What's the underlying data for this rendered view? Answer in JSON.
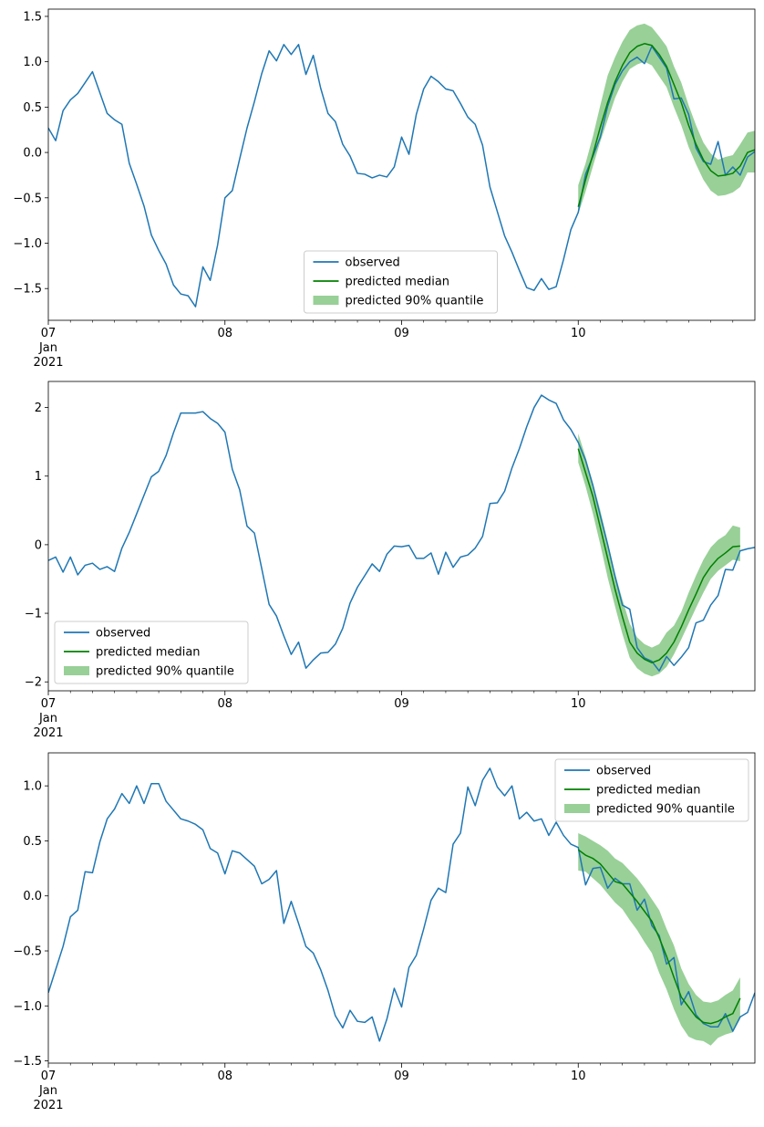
{
  "chart_data": [
    {
      "type": "line",
      "title": "",
      "xlabel": "",
      "ylabel": "",
      "x_start": "2021-01-07T00:00",
      "x_end": "2021-01-11T00:00",
      "step_hours": 1,
      "forecast_start": "2021-01-10T00:00",
      "xticks": [
        {
          "at": "2021-01-07",
          "label": "07",
          "sublabels": [
            "Jan",
            "2021"
          ]
        },
        {
          "at": "2021-01-08",
          "label": "08",
          "sublabels": []
        },
        {
          "at": "2021-01-09",
          "label": "09",
          "sublabels": []
        },
        {
          "at": "2021-01-10",
          "label": "10",
          "sublabels": []
        }
      ],
      "ylim": [
        -1.85,
        1.58
      ],
      "yticks": [
        {
          "value": -1.5,
          "label": "−1.5"
        },
        {
          "value": -1.0,
          "label": "−1.0"
        },
        {
          "value": -0.5,
          "label": "−0.5"
        },
        {
          "value": 0.0,
          "label": "0.0"
        },
        {
          "value": 0.5,
          "label": "0.5"
        },
        {
          "value": 1.0,
          "label": "1.0"
        },
        {
          "value": 1.5,
          "label": "1.5"
        }
      ],
      "legend": {
        "position": "lower center",
        "entries": [
          "observed",
          "predicted median",
          "predicted 90% quantile"
        ]
      },
      "series": [
        {
          "name": "observed",
          "color": "#1f77b4",
          "values": [
            0.27,
            0.13,
            0.46,
            0.58,
            0.65,
            0.77,
            0.89,
            0.66,
            0.43,
            0.36,
            0.31,
            -0.12,
            -0.35,
            -0.59,
            -0.91,
            -1.08,
            -1.23,
            -1.46,
            -1.56,
            -1.58,
            -1.7,
            -1.26,
            -1.41,
            -1.02,
            -0.5,
            -0.42,
            -0.07,
            0.27,
            0.56,
            0.87,
            1.12,
            1.01,
            1.19,
            1.08,
            1.19,
            0.86,
            1.07,
            0.71,
            0.43,
            0.34,
            0.09,
            -0.04,
            -0.23,
            -0.24,
            -0.28,
            -0.25,
            -0.27,
            -0.16,
            0.17,
            -0.02,
            0.42,
            0.7,
            0.84,
            0.78,
            0.7,
            0.68,
            0.54,
            0.39,
            0.31,
            0.08,
            -0.38,
            -0.65,
            -0.92,
            -1.1,
            -1.3,
            -1.49,
            -1.52,
            -1.39,
            -1.51,
            -1.48,
            -1.18,
            -0.85,
            -0.66,
            -0.24,
            -0.04,
            0.17,
            0.51,
            0.75,
            0.9,
            1.0,
            1.05,
            0.98,
            1.17,
            1.05,
            0.93,
            0.59,
            0.6,
            0.42,
            0.05,
            -0.1,
            -0.13,
            0.12,
            -0.25,
            -0.16,
            -0.25,
            -0.05,
            0.01
          ]
        },
        {
          "name": "predicted median",
          "color": "#008000",
          "x_offset": 72,
          "values": [
            -0.6,
            -0.3,
            -0.02,
            0.28,
            0.55,
            0.78,
            0.96,
            1.1,
            1.17,
            1.2,
            1.18,
            1.08,
            0.95,
            0.75,
            0.55,
            0.3,
            0.09,
            -0.08,
            -0.2,
            -0.26,
            -0.25,
            -0.23,
            -0.15,
            0.0,
            0.03
          ]
        },
        {
          "name": "predicted 90% quantile",
          "color": "#98d098",
          "x_offset": 72,
          "lower": [
            -0.68,
            -0.43,
            -0.15,
            0.12,
            0.36,
            0.6,
            0.78,
            0.92,
            0.97,
            1.0,
            0.96,
            0.84,
            0.72,
            0.5,
            0.3,
            0.06,
            -0.13,
            -0.3,
            -0.42,
            -0.48,
            -0.47,
            -0.44,
            -0.38,
            -0.22,
            -0.22
          ],
          "upper": [
            -0.36,
            -0.12,
            0.18,
            0.52,
            0.85,
            1.05,
            1.22,
            1.35,
            1.4,
            1.42,
            1.38,
            1.28,
            1.17,
            0.95,
            0.77,
            0.52,
            0.3,
            0.11,
            -0.01,
            -0.08,
            -0.05,
            -0.03,
            0.09,
            0.22,
            0.24
          ]
        }
      ]
    },
    {
      "type": "line",
      "title": "",
      "xlabel": "",
      "ylabel": "",
      "x_start": "2021-01-07T00:00",
      "x_end": "2021-01-11T00:00",
      "step_hours": 1,
      "forecast_start": "2021-01-10T00:00",
      "xticks": [
        {
          "at": "2021-01-07",
          "label": "07",
          "sublabels": [
            "Jan",
            "2021"
          ]
        },
        {
          "at": "2021-01-08",
          "label": "08",
          "sublabels": []
        },
        {
          "at": "2021-01-09",
          "label": "09",
          "sublabels": []
        },
        {
          "at": "2021-01-10",
          "label": "10",
          "sublabels": []
        }
      ],
      "ylim": [
        -2.13,
        2.38
      ],
      "yticks": [
        {
          "value": -2,
          "label": "−2"
        },
        {
          "value": -1,
          "label": "−1"
        },
        {
          "value": 0,
          "label": "0"
        },
        {
          "value": 1,
          "label": "1"
        },
        {
          "value": 2,
          "label": "2"
        }
      ],
      "legend": {
        "position": "lower left",
        "entries": [
          "observed",
          "predicted median",
          "predicted 90% quantile"
        ]
      },
      "series": [
        {
          "name": "observed",
          "color": "#1f77b4",
          "values": [
            -0.23,
            -0.18,
            -0.4,
            -0.18,
            -0.44,
            -0.3,
            -0.27,
            -0.36,
            -0.32,
            -0.39,
            -0.05,
            0.18,
            0.45,
            0.72,
            0.99,
            1.07,
            1.3,
            1.63,
            1.92,
            1.92,
            1.92,
            1.94,
            1.84,
            1.77,
            1.64,
            1.1,
            0.8,
            0.27,
            0.17,
            -0.35,
            -0.87,
            -1.04,
            -1.33,
            -1.6,
            -1.42,
            -1.8,
            -1.68,
            -1.58,
            -1.57,
            -1.45,
            -1.22,
            -0.85,
            -0.62,
            -0.45,
            -0.28,
            -0.39,
            -0.14,
            -0.02,
            -0.03,
            -0.01,
            -0.2,
            -0.2,
            -0.12,
            -0.43,
            -0.11,
            -0.33,
            -0.18,
            -0.15,
            -0.05,
            0.12,
            0.6,
            0.61,
            0.78,
            1.12,
            1.4,
            1.72,
            2.0,
            2.18,
            2.11,
            2.06,
            1.82,
            1.68,
            1.49,
            1.23,
            0.86,
            0.42,
            0.0,
            -0.46,
            -0.88,
            -0.94,
            -1.5,
            -1.65,
            -1.7,
            -1.84,
            -1.63,
            -1.76,
            -1.64,
            -1.5,
            -1.14,
            -1.1,
            -0.88,
            -0.74,
            -0.36,
            -0.37,
            -0.09,
            -0.06,
            -0.04
          ]
        },
        {
          "name": "predicted median",
          "color": "#008000",
          "x_offset": 72,
          "values": [
            1.4,
            1.05,
            0.7,
            0.25,
            -0.2,
            -0.65,
            -1.05,
            -1.42,
            -1.58,
            -1.67,
            -1.72,
            -1.68,
            -1.58,
            -1.42,
            -1.2,
            -0.95,
            -0.72,
            -0.48,
            -0.32,
            -0.2,
            -0.12,
            -0.03,
            -0.02
          ]
        },
        {
          "name": "predicted 90% quantile",
          "color": "#98d098",
          "x_offset": 72,
          "lower": [
            1.2,
            0.85,
            0.45,
            0.0,
            -0.48,
            -0.9,
            -1.3,
            -1.65,
            -1.8,
            -1.88,
            -1.92,
            -1.88,
            -1.78,
            -1.6,
            -1.38,
            -1.15,
            -0.92,
            -0.7,
            -0.5,
            -0.38,
            -0.3,
            -0.22,
            -0.24
          ],
          "upper": [
            1.62,
            1.28,
            0.9,
            0.5,
            0.05,
            -0.42,
            -0.8,
            -1.15,
            -1.35,
            -1.45,
            -1.5,
            -1.45,
            -1.28,
            -1.18,
            -0.98,
            -0.7,
            -0.45,
            -0.22,
            -0.04,
            0.07,
            0.14,
            0.28,
            0.25
          ]
        }
      ]
    },
    {
      "type": "line",
      "title": "",
      "xlabel": "",
      "ylabel": "",
      "x_start": "2021-01-07T00:00",
      "x_end": "2021-01-11T00:00",
      "step_hours": 1,
      "forecast_start": "2021-01-10T00:00",
      "xticks": [
        {
          "at": "2021-01-07",
          "label": "07",
          "sublabels": [
            "Jan",
            "2021"
          ]
        },
        {
          "at": "2021-01-08",
          "label": "08",
          "sublabels": []
        },
        {
          "at": "2021-01-09",
          "label": "09",
          "sublabels": []
        },
        {
          "at": "2021-01-10",
          "label": "10",
          "sublabels": []
        }
      ],
      "ylim": [
        -1.52,
        1.3
      ],
      "yticks": [
        {
          "value": -1.5,
          "label": "−1.5"
        },
        {
          "value": -1.0,
          "label": "−1.0"
        },
        {
          "value": -0.5,
          "label": "−0.5"
        },
        {
          "value": 0.0,
          "label": "0.0"
        },
        {
          "value": 0.5,
          "label": "0.5"
        },
        {
          "value": 1.0,
          "label": "1.0"
        }
      ],
      "legend": {
        "position": "upper right",
        "entries": [
          "observed",
          "predicted median",
          "predicted 90% quantile"
        ]
      },
      "series": [
        {
          "name": "observed",
          "color": "#1f77b4",
          "values": [
            -0.88,
            -0.67,
            -0.46,
            -0.19,
            -0.13,
            0.22,
            0.21,
            0.49,
            0.7,
            0.79,
            0.93,
            0.84,
            1.0,
            0.84,
            1.02,
            1.02,
            0.86,
            0.78,
            0.7,
            0.68,
            0.65,
            0.6,
            0.43,
            0.39,
            0.2,
            0.41,
            0.39,
            0.33,
            0.27,
            0.11,
            0.15,
            0.23,
            -0.25,
            -0.05,
            -0.25,
            -0.46,
            -0.52,
            -0.67,
            -0.86,
            -1.09,
            -1.2,
            -1.04,
            -1.14,
            -1.15,
            -1.1,
            -1.32,
            -1.12,
            -0.84,
            -1.01,
            -0.65,
            -0.54,
            -0.3,
            -0.04,
            0.07,
            0.03,
            0.47,
            0.57,
            0.99,
            0.82,
            1.05,
            1.16,
            0.99,
            0.91,
            1.0,
            0.7,
            0.76,
            0.68,
            0.7,
            0.55,
            0.67,
            0.55,
            0.47,
            0.44,
            0.1,
            0.25,
            0.26,
            0.07,
            0.16,
            0.11,
            0.11,
            -0.13,
            -0.03,
            -0.27,
            -0.36,
            -0.62,
            -0.56,
            -0.99,
            -0.87,
            -1.08,
            -1.16,
            -1.19,
            -1.19,
            -1.07,
            -1.23,
            -1.1,
            -1.06,
            -0.88
          ]
        },
        {
          "name": "predicted median",
          "color": "#008000",
          "x_offset": 72,
          "values": [
            0.42,
            0.37,
            0.34,
            0.29,
            0.21,
            0.13,
            0.11,
            0.03,
            -0.05,
            -0.14,
            -0.23,
            -0.38,
            -0.55,
            -0.74,
            -0.92,
            -1.01,
            -1.1,
            -1.15,
            -1.16,
            -1.14,
            -1.1,
            -1.07,
            -0.93
          ]
        },
        {
          "name": "predicted 90% quantile",
          "color": "#98d098",
          "x_offset": 72,
          "lower": [
            0.23,
            0.22,
            0.16,
            0.1,
            0.02,
            -0.06,
            -0.12,
            -0.22,
            -0.31,
            -0.42,
            -0.52,
            -0.7,
            -0.85,
            -1.03,
            -1.18,
            -1.28,
            -1.31,
            -1.32,
            -1.36,
            -1.29,
            -1.26,
            -1.24,
            -1.12
          ],
          "upper": [
            0.57,
            0.54,
            0.5,
            0.46,
            0.41,
            0.34,
            0.3,
            0.23,
            0.16,
            0.07,
            -0.03,
            -0.13,
            -0.3,
            -0.45,
            -0.66,
            -0.8,
            -0.9,
            -0.96,
            -0.97,
            -0.95,
            -0.9,
            -0.86,
            -0.74
          ]
        }
      ]
    }
  ]
}
